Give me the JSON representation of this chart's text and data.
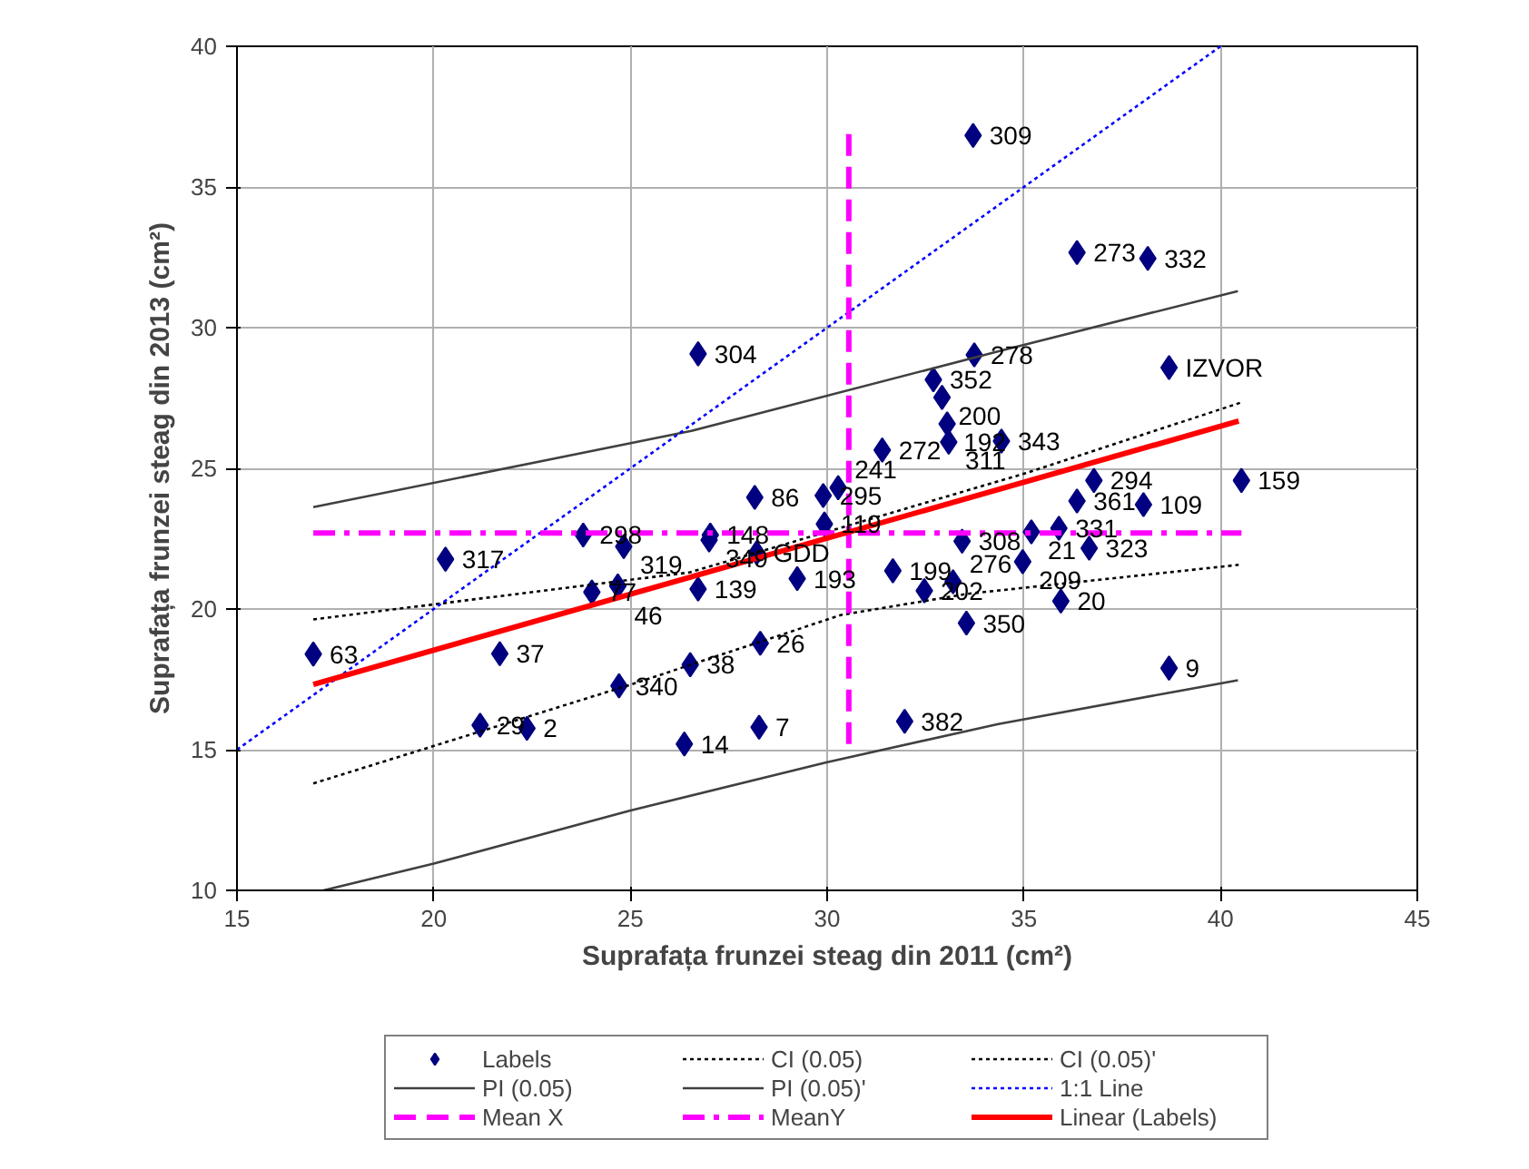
{
  "chart_data": {
    "type": "scatter",
    "xlabel": "Suprafața frunzei steag din 2011 (cm²)",
    "ylabel": "Suprafața frunzei steag din 2013 (cm²)",
    "xlim": [
      15,
      45
    ],
    "ylim": [
      10,
      40
    ],
    "xticks": [
      15,
      20,
      25,
      30,
      35,
      40,
      45
    ],
    "yticks": [
      10,
      15,
      20,
      25,
      30,
      35,
      40
    ],
    "grid": true,
    "legend": "bottom",
    "series": [
      {
        "name": "Labels",
        "marker": "diamond",
        "color": "#000080",
        "x": [
          16.94,
          20.3,
          23.8,
          24.83,
          24.02,
          24.68,
          21.68,
          21.18,
          22.37,
          24.71,
          26.52,
          26.37,
          28.27,
          28.3,
          31.97,
          33.54,
          26.72,
          33.74,
          32.7,
          32.92,
          33.05,
          33.09,
          34.43,
          31.4,
          28.16,
          29.9,
          30.28,
          29.93,
          27.03,
          27.0,
          28.21,
          26.72,
          29.24,
          31.67,
          32.47,
          33.2,
          33.43,
          38.69,
          36.78,
          36.35,
          38.04,
          40.53,
          35.89,
          35.19,
          36.66,
          34.97,
          35.94,
          38.69,
          33.71,
          36.35,
          38.15
        ],
        "values": [
          18.4,
          21.77,
          22.63,
          22.22,
          20.6,
          20.82,
          18.41,
          15.87,
          15.76,
          17.27,
          18.02,
          15.2,
          15.8,
          18.78,
          16.01,
          19.5,
          29.07,
          29.03,
          28.15,
          27.52,
          26.58,
          25.93,
          25.97,
          25.65,
          23.97,
          24.03,
          24.31,
          23.02,
          22.63,
          22.45,
          22.0,
          20.71,
          21.08,
          21.36,
          20.65,
          20.97,
          22.41,
          28.58,
          24.57,
          23.84,
          23.71,
          24.57,
          22.87,
          22.74,
          22.16,
          21.68,
          20.28,
          17.9,
          36.83,
          32.67,
          32.46
        ]
      },
      {
        "name": "CI (0.05)",
        "type": "line",
        "line_style": "dotted",
        "color": "#000000",
        "x": [
          16.94,
          26.5,
          35.1,
          40.5
        ],
        "values": [
          19.63,
          21.3,
          24.85,
          27.33
        ]
      },
      {
        "name": "CI (0.05)'",
        "type": "line",
        "line_style": "dotted",
        "color": "#000000",
        "x": [
          16.94,
          24.98,
          30.36,
          33.57,
          40.46
        ],
        "values": [
          13.8,
          17.3,
          19.79,
          20.54,
          21.57
        ]
      },
      {
        "name": "PI (0.05)",
        "type": "line",
        "line_style": "solid",
        "color": "#404040",
        "x": [
          16.94,
          26.52,
          34.36,
          40.44
        ],
        "values": [
          23.62,
          26.32,
          29.16,
          31.3
        ]
      },
      {
        "name": "PI (0.05)'",
        "type": "line",
        "line_style": "solid",
        "color": "#404040",
        "x": [
          17.2,
          20,
          24.98,
          29.98,
          34.35,
          40.44
        ],
        "values": [
          10.0,
          10.95,
          12.83,
          14.55,
          15.91,
          17.47
        ]
      },
      {
        "name": "1:1 Line",
        "type": "line",
        "line_style": "dotted",
        "color": "#0000ff",
        "x": [
          15,
          40
        ],
        "values": [
          15,
          40
        ]
      },
      {
        "name": "Mean X",
        "type": "line",
        "line_style": "dashed",
        "color": "#ff00ff",
        "x": [
          30.55,
          30.55
        ],
        "values": [
          15.2,
          36.9
        ]
      },
      {
        "name": "MeanY",
        "type": "line",
        "line_style": "dashdot",
        "color": "#ff00ff",
        "x": [
          16.94,
          40.53
        ],
        "values": [
          22.7,
          22.7
        ]
      },
      {
        "name": "Linear (Labels)",
        "type": "line",
        "line_style": "solid",
        "color": "#ff0000",
        "x": [
          16.94,
          40.46
        ],
        "values": [
          17.32,
          26.68
        ]
      }
    ],
    "annotations": [
      {
        "text": "63",
        "x": 16.94,
        "y": 18.4
      },
      {
        "text": "317",
        "x": 20.3,
        "y": 21.77
      },
      {
        "text": "298",
        "x": 23.8,
        "y": 22.63
      },
      {
        "text": "319",
        "x": 24.83,
        "y": 22.22
      },
      {
        "text": "77",
        "x": 24.02,
        "y": 20.6
      },
      {
        "text": "46",
        "x": 24.68,
        "y": 20.82
      },
      {
        "text": "37",
        "x": 21.68,
        "y": 18.41
      },
      {
        "text": "29",
        "x": 21.18,
        "y": 15.87
      },
      {
        "text": "2",
        "x": 22.37,
        "y": 15.76
      },
      {
        "text": "340",
        "x": 24.71,
        "y": 17.27
      },
      {
        "text": "38",
        "x": 26.52,
        "y": 18.02
      },
      {
        "text": "14",
        "x": 26.37,
        "y": 15.2
      },
      {
        "text": "7",
        "x": 28.27,
        "y": 15.8
      },
      {
        "text": "26",
        "x": 28.3,
        "y": 18.78
      },
      {
        "text": "382",
        "x": 31.97,
        "y": 16.01
      },
      {
        "text": "350",
        "x": 33.54,
        "y": 19.5
      },
      {
        "text": "304",
        "x": 26.72,
        "y": 29.07
      },
      {
        "text": "278",
        "x": 33.74,
        "y": 29.03
      },
      {
        "text": "352",
        "x": 32.7,
        "y": 28.15
      },
      {
        "text": "200",
        "x": 32.92,
        "y": 27.52
      },
      {
        "text": "192",
        "x": 33.05,
        "y": 26.58
      },
      {
        "text": "311",
        "x": 33.09,
        "y": 25.93
      },
      {
        "text": "343",
        "x": 34.43,
        "y": 25.97
      },
      {
        "text": "272",
        "x": 31.4,
        "y": 25.65
      },
      {
        "text": "86",
        "x": 28.16,
        "y": 23.97
      },
      {
        "text": "295",
        "x": 29.9,
        "y": 24.03
      },
      {
        "text": "241",
        "x": 30.28,
        "y": 24.31
      },
      {
        "text": "119",
        "x": 29.93,
        "y": 23.02
      },
      {
        "text": "148",
        "x": 27.03,
        "y": 22.63
      },
      {
        "text": "349",
        "x": 27.0,
        "y": 22.45
      },
      {
        "text": "GDD",
        "x": 28.21,
        "y": 22.0
      },
      {
        "text": "139",
        "x": 26.72,
        "y": 20.71
      },
      {
        "text": "193",
        "x": 29.24,
        "y": 21.08
      },
      {
        "text": "199",
        "x": 31.67,
        "y": 21.36
      },
      {
        "text": "202",
        "x": 32.47,
        "y": 20.65
      },
      {
        "text": "276",
        "x": 33.2,
        "y": 20.97
      },
      {
        "text": "308",
        "x": 33.43,
        "y": 22.41
      },
      {
        "text": "IZVOR",
        "x": 38.69,
        "y": 28.58
      },
      {
        "text": "294",
        "x": 36.78,
        "y": 24.57
      },
      {
        "text": "361",
        "x": 36.35,
        "y": 23.84
      },
      {
        "text": "109",
        "x": 38.04,
        "y": 23.71
      },
      {
        "text": "159",
        "x": 40.53,
        "y": 24.57
      },
      {
        "text": "331",
        "x": 35.89,
        "y": 22.87
      },
      {
        "text": "21",
        "x": 35.19,
        "y": 22.74
      },
      {
        "text": "323",
        "x": 36.66,
        "y": 22.16
      },
      {
        "text": "209",
        "x": 34.97,
        "y": 21.68
      },
      {
        "text": "20",
        "x": 35.94,
        "y": 20.28
      },
      {
        "text": "9",
        "x": 38.69,
        "y": 17.9
      },
      {
        "text": "309",
        "x": 33.71,
        "y": 36.83
      },
      {
        "text": "273",
        "x": 36.35,
        "y": 32.67
      },
      {
        "text": "332",
        "x": 38.15,
        "y": 32.46
      }
    ]
  }
}
